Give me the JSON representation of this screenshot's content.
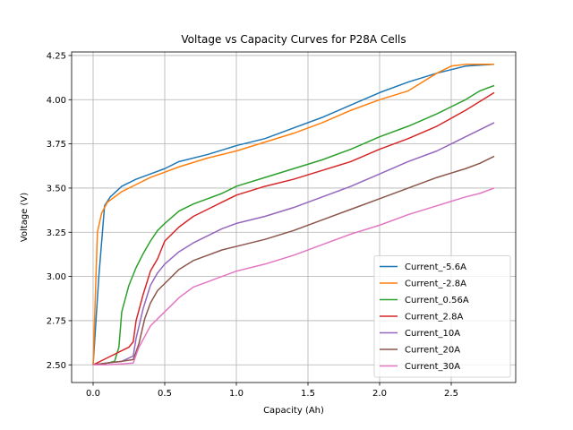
{
  "chart_data": {
    "type": "line",
    "title": "Voltage vs Capacity Curves for P28A Cells",
    "xlabel": "Capacity (Ah)",
    "ylabel": "Voltage (V)",
    "xlim": [
      -0.15,
      2.95
    ],
    "ylim": [
      2.4,
      4.27
    ],
    "xticks": [
      0.0,
      0.5,
      1.0,
      1.5,
      2.0,
      2.5
    ],
    "xtick_labels": [
      "0.0",
      "0.5",
      "1.0",
      "1.5",
      "2.0",
      "2.5"
    ],
    "yticks": [
      2.5,
      2.75,
      3.0,
      3.25,
      3.5,
      3.75,
      4.0,
      4.25
    ],
    "ytick_labels": [
      "2.50",
      "2.75",
      "3.00",
      "3.25",
      "3.50",
      "3.75",
      "4.00",
      "4.25"
    ],
    "grid": true,
    "legend_position": "bottom-right",
    "series": [
      {
        "name": "Current_-5.6A",
        "color": "#1f77b4",
        "x": [
          0.0,
          0.04,
          0.08,
          0.12,
          0.2,
          0.3,
          0.4,
          0.5,
          0.6,
          0.8,
          1.0,
          1.2,
          1.4,
          1.6,
          1.8,
          2.0,
          2.2,
          2.4,
          2.6,
          2.8
        ],
        "y": [
          2.5,
          3.0,
          3.4,
          3.45,
          3.51,
          3.55,
          3.58,
          3.61,
          3.65,
          3.69,
          3.74,
          3.78,
          3.84,
          3.9,
          3.97,
          4.04,
          4.1,
          4.15,
          4.19,
          4.2
        ]
      },
      {
        "name": "Current_-2.8A",
        "color": "#ff7f0e",
        "x": [
          0.0,
          0.03,
          0.06,
          0.1,
          0.2,
          0.3,
          0.4,
          0.5,
          0.6,
          0.8,
          1.0,
          1.2,
          1.4,
          1.6,
          1.8,
          2.0,
          2.2,
          2.4,
          2.5,
          2.6,
          2.8
        ],
        "y": [
          2.5,
          3.25,
          3.36,
          3.42,
          3.48,
          3.52,
          3.56,
          3.59,
          3.62,
          3.67,
          3.71,
          3.76,
          3.81,
          3.87,
          3.94,
          4.0,
          4.05,
          4.15,
          4.19,
          4.2,
          4.2
        ]
      },
      {
        "name": "Current_0.56A",
        "color": "#2ca02c",
        "x": [
          0.0,
          0.1,
          0.15,
          0.18,
          0.2,
          0.25,
          0.3,
          0.35,
          0.4,
          0.45,
          0.5,
          0.6,
          0.7,
          0.8,
          0.9,
          1.0,
          1.2,
          1.4,
          1.6,
          1.8,
          2.0,
          2.2,
          2.4,
          2.6,
          2.7,
          2.8
        ],
        "y": [
          2.5,
          2.51,
          2.52,
          2.6,
          2.8,
          2.95,
          3.05,
          3.13,
          3.2,
          3.26,
          3.3,
          3.37,
          3.41,
          3.44,
          3.47,
          3.51,
          3.56,
          3.61,
          3.66,
          3.72,
          3.79,
          3.85,
          3.92,
          4.0,
          4.05,
          4.08
        ]
      },
      {
        "name": "Current_2.8A",
        "color": "#d62728",
        "x": [
          0.0,
          0.1,
          0.2,
          0.25,
          0.28,
          0.3,
          0.35,
          0.4,
          0.45,
          0.5,
          0.6,
          0.7,
          0.8,
          0.9,
          1.0,
          1.2,
          1.4,
          1.6,
          1.8,
          2.0,
          2.2,
          2.4,
          2.6,
          2.7,
          2.8
        ],
        "y": [
          2.5,
          2.54,
          2.58,
          2.6,
          2.63,
          2.75,
          2.9,
          3.03,
          3.1,
          3.2,
          3.28,
          3.34,
          3.38,
          3.42,
          3.46,
          3.51,
          3.55,
          3.6,
          3.65,
          3.72,
          3.78,
          3.85,
          3.94,
          3.99,
          4.04
        ]
      },
      {
        "name": "Current_10A",
        "color": "#9467bd",
        "x": [
          0.0,
          0.1,
          0.2,
          0.28,
          0.3,
          0.35,
          0.4,
          0.45,
          0.5,
          0.6,
          0.7,
          0.8,
          0.9,
          1.0,
          1.2,
          1.4,
          1.6,
          1.8,
          2.0,
          2.2,
          2.4,
          2.6,
          2.7,
          2.8
        ],
        "y": [
          2.5,
          2.51,
          2.52,
          2.55,
          2.65,
          2.82,
          2.95,
          3.02,
          3.07,
          3.14,
          3.19,
          3.23,
          3.27,
          3.3,
          3.34,
          3.39,
          3.45,
          3.51,
          3.58,
          3.65,
          3.71,
          3.79,
          3.83,
          3.87
        ]
      },
      {
        "name": "Current_20A",
        "color": "#8c564b",
        "x": [
          0.0,
          0.1,
          0.2,
          0.28,
          0.32,
          0.36,
          0.4,
          0.45,
          0.5,
          0.6,
          0.7,
          0.8,
          0.9,
          1.0,
          1.2,
          1.4,
          1.6,
          1.8,
          2.0,
          2.2,
          2.4,
          2.6,
          2.7,
          2.8
        ],
        "y": [
          2.5,
          2.51,
          2.52,
          2.53,
          2.62,
          2.76,
          2.85,
          2.92,
          2.96,
          3.04,
          3.09,
          3.12,
          3.15,
          3.17,
          3.21,
          3.26,
          3.32,
          3.38,
          3.44,
          3.5,
          3.56,
          3.61,
          3.64,
          3.68
        ]
      },
      {
        "name": "Current_30A",
        "color": "#e377c2",
        "x": [
          0.0,
          0.1,
          0.2,
          0.28,
          0.32,
          0.36,
          0.4,
          0.45,
          0.5,
          0.6,
          0.7,
          0.8,
          0.9,
          1.0,
          1.2,
          1.4,
          1.6,
          1.8,
          2.0,
          2.2,
          2.4,
          2.6,
          2.7,
          2.8
        ],
        "y": [
          2.5,
          2.5,
          2.505,
          2.51,
          2.6,
          2.66,
          2.72,
          2.76,
          2.8,
          2.88,
          2.94,
          2.97,
          3.0,
          3.03,
          3.07,
          3.12,
          3.18,
          3.24,
          3.29,
          3.35,
          3.4,
          3.45,
          3.47,
          3.5
        ]
      }
    ]
  }
}
